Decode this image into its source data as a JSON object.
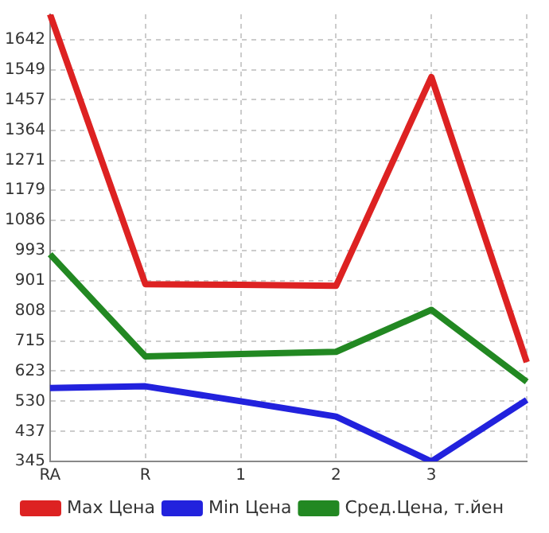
{
  "chart_data": {
    "type": "line",
    "categories": [
      "RA",
      "R",
      "1",
      "2",
      "3",
      null
    ],
    "series": [
      {
        "name": "Max Цена",
        "color": "#dd2222",
        "values": [
          1720,
          890,
          888,
          885,
          1527,
          650
        ]
      },
      {
        "name": "Min Цена",
        "color": "#2222dd",
        "values": [
          571,
          576,
          530,
          483,
          345,
          534
        ]
      },
      {
        "name": "Сред.Цена, т.йен",
        "color": "#228822",
        "values": [
          982,
          668,
          675,
          682,
          811,
          590
        ]
      }
    ],
    "ylim": [
      345,
      1720
    ],
    "yticks": [
      345,
      437,
      530,
      623,
      715,
      808,
      901,
      993,
      1086,
      1179,
      1271,
      1364,
      1457,
      1549,
      1642
    ],
    "grid": true,
    "legend": "bottom",
    "marker": "none",
    "line_style": "solid"
  }
}
